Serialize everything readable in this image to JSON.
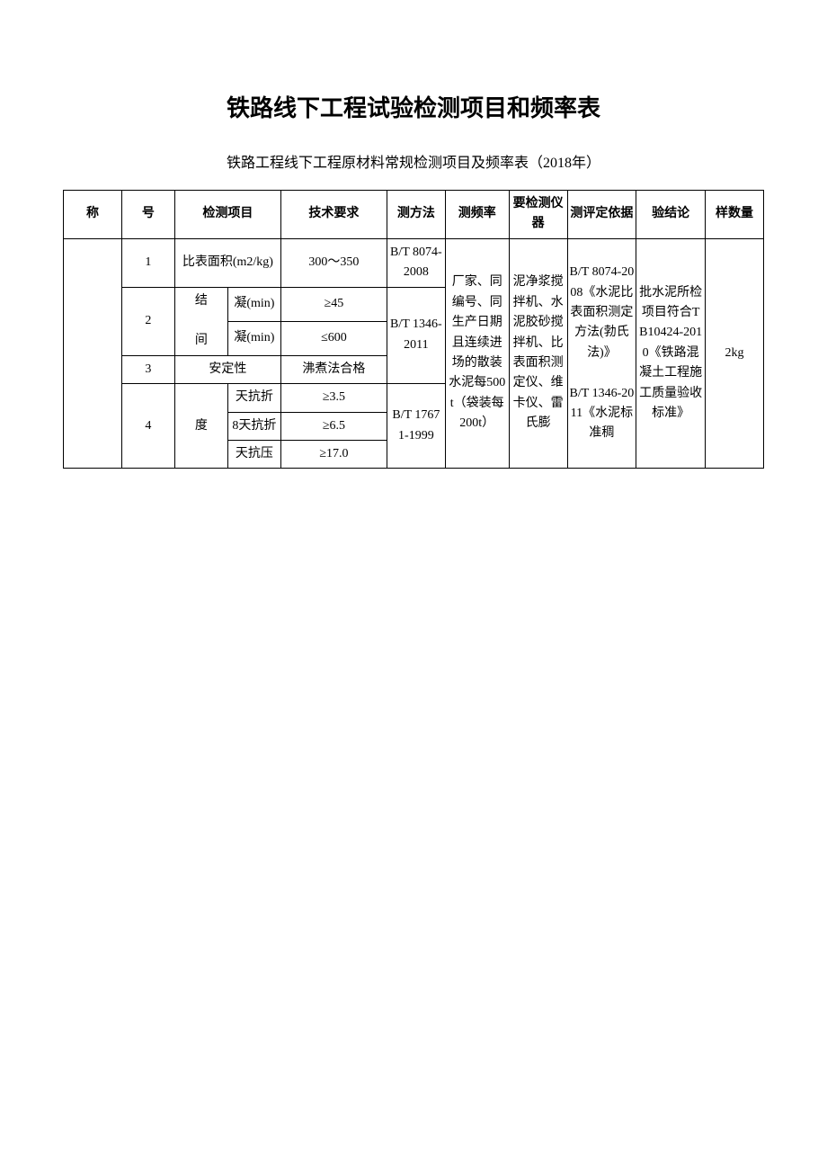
{
  "document": {
    "title": "铁路线下工程试验检测项目和频率表",
    "subtitle": "铁路工程线下工程原材料常规检测项目及频率表（2018年）"
  },
  "headers": {
    "name": "称",
    "num": "号",
    "item": "检测项目",
    "req": "技术要求",
    "method": "测方法",
    "freq": "测频率",
    "instr": "要检测仪器",
    "basis": "测评定依据",
    "concl": "验结论",
    "qty": "样数量"
  },
  "rows": {
    "r1": {
      "num": "1",
      "item": "比表面积(m2/kg)",
      "req": "300～350",
      "method": "B/T 8074-2008"
    },
    "r2": {
      "num": "2",
      "item_main": "结",
      "item_main2": "间",
      "sub1_label": "凝(min)",
      "sub1_val": "≥45",
      "sub2_label": "凝(min)",
      "sub2_val": "≤600",
      "method": "B/T 1346-2011"
    },
    "r3": {
      "num": "3",
      "item": "安定性",
      "req": "沸煮法合格"
    },
    "r4": {
      "num": "4",
      "item_main": "度",
      "sub1_label": "天抗折",
      "sub1_val": "≥3.5",
      "sub2_label": "8天抗折",
      "sub2_val": "≥6.5",
      "sub3_label": "天抗压",
      "sub3_val": "≥17.0",
      "method": "B/T 17671-1999"
    },
    "shared": {
      "freq": "厂家、同编号、同生产日期且连续进场的散装水泥每500t（袋装每200t）",
      "instr": "泥净浆搅拌机、水泥胶砂搅拌机、比表面积测定仪、维卡仪、雷氏膨",
      "basis1": "B/T 8074-2008《水泥比表面积测定方法(勃氏法)》",
      "basis2": "B/T 1346-2011《水泥标准稠",
      "concl": "批水泥所检项目符合TB10424-2010《铁路混凝土工程施工质量验收标准》",
      "qty": "2kg"
    }
  },
  "colors": {
    "text": "#000000",
    "bg": "#ffffff",
    "border": "#000000",
    "watermark": "#e8e8e8"
  }
}
